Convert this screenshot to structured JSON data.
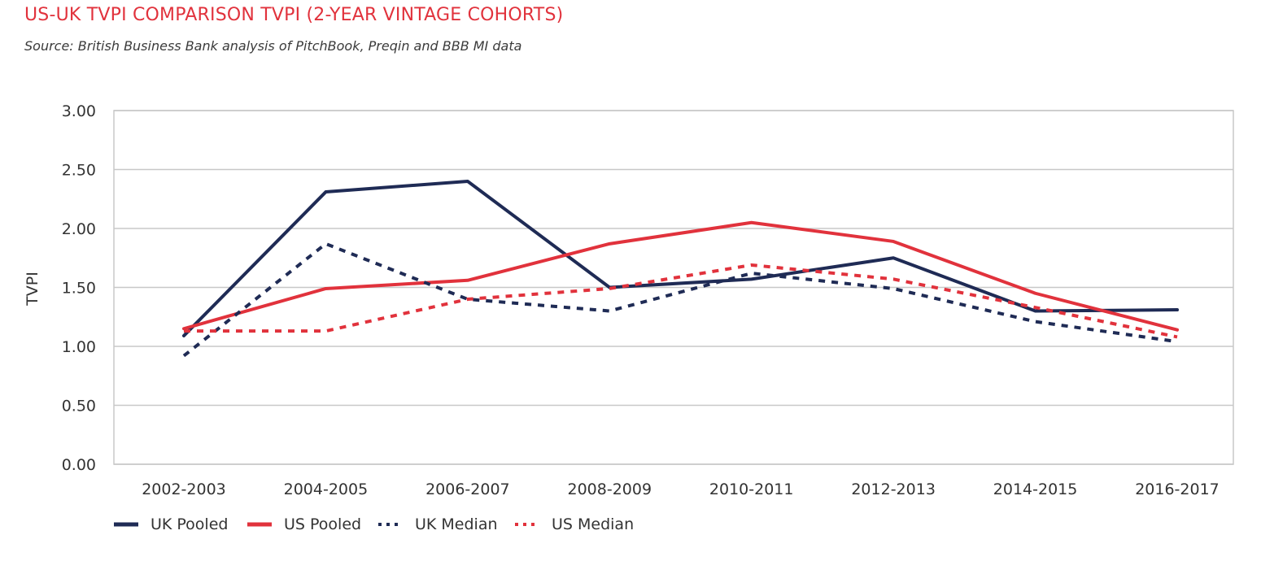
{
  "title": "US-UK TVPI COMPARISON TVPI (2-YEAR VINTAGE COHORTS)",
  "subtitle": "Source: British Business Bank analysis of PitchBook, Preqin and BBB MI data",
  "chart_data": {
    "type": "line",
    "title": "US-UK TVPI COMPARISON TVPI (2-YEAR VINTAGE COHORTS)",
    "xlabel": "",
    "ylabel": "TVPI",
    "ylim": [
      0,
      3
    ],
    "yticks": [
      "0.00",
      "0.50",
      "1.00",
      "1.50",
      "2.00",
      "2.50",
      "3.00"
    ],
    "categories": [
      "2002-2003",
      "2004-2005",
      "2006-2007",
      "2008-2009",
      "2010-2011",
      "2012-2013",
      "2014-2015",
      "2016-2017"
    ],
    "grid": true,
    "legend_position": "bottom-left",
    "series": [
      {
        "name": "UK Pooled",
        "values": [
          1.09,
          2.31,
          2.4,
          1.5,
          1.57,
          1.75,
          1.3,
          1.31
        ],
        "color": "#1f2b55",
        "style": "solid"
      },
      {
        "name": "US Pooled",
        "values": [
          1.15,
          1.49,
          1.56,
          1.87,
          2.05,
          1.89,
          1.45,
          1.14
        ],
        "color": "#e1323c",
        "style": "solid"
      },
      {
        "name": "UK Median",
        "values": [
          0.92,
          1.87,
          1.4,
          1.3,
          1.62,
          1.49,
          1.21,
          1.04
        ],
        "color": "#1f2b55",
        "style": "dotted"
      },
      {
        "name": "US Median",
        "values": [
          1.13,
          1.13,
          1.4,
          1.49,
          1.69,
          1.57,
          1.33,
          1.08
        ],
        "color": "#e1323c",
        "style": "dotted"
      }
    ]
  }
}
